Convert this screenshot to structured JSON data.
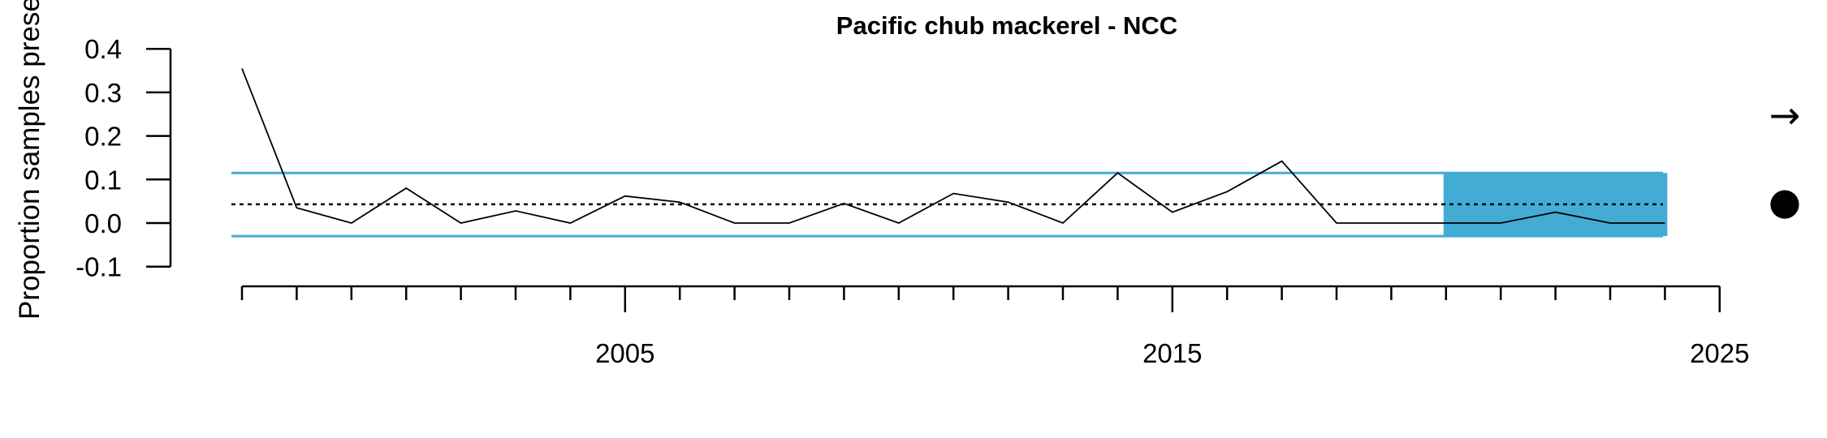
{
  "chart_data": {
    "type": "line",
    "title": "Pacific chub mackerel - NCC",
    "ylabel": "Proportion samples present",
    "xlabel": "",
    "x_range": [
      1997.5,
      2025
    ],
    "ylim": [
      -0.1,
      0.4
    ],
    "y_ticks": [
      {
        "value": 0.4,
        "label": "0.4"
      },
      {
        "value": 0.3,
        "label": "0.3"
      },
      {
        "value": 0.2,
        "label": "0.2"
      },
      {
        "value": 0.1,
        "label": "0.1"
      },
      {
        "value": 0.0,
        "label": "0.0"
      },
      {
        "value": -0.1,
        "label": "-0.1"
      }
    ],
    "x_major_ticks": [
      {
        "value": 2005,
        "label": "2005"
      },
      {
        "value": 2015,
        "label": "2015"
      },
      {
        "value": 2025,
        "label": "2025"
      }
    ],
    "x_minor_ticks": [
      1998,
      1999,
      2000,
      2001,
      2002,
      2003,
      2004,
      2006,
      2007,
      2008,
      2009,
      2010,
      2011,
      2012,
      2013,
      2014,
      2016,
      2017,
      2018,
      2019,
      2020,
      2021,
      2022,
      2023,
      2024
    ],
    "series": [
      {
        "name": "Proportion samples present",
        "x": [
          1998,
          1999,
          2000,
          2001,
          2002,
          2003,
          2004,
          2005,
          2006,
          2007,
          2008,
          2009,
          2010,
          2011,
          2012,
          2013,
          2014,
          2015,
          2016,
          2017,
          2018,
          2019,
          2020,
          2021,
          2022,
          2023,
          2024
        ],
        "values": [
          0.355,
          0.035,
          0.0,
          0.08,
          0.0,
          0.028,
          0.0,
          0.062,
          0.048,
          0.0,
          0.0,
          0.045,
          0.0,
          0.068,
          0.048,
          0.0,
          0.115,
          0.025,
          0.072,
          0.142,
          0.0,
          0.0,
          0.0,
          0.0,
          0.025,
          0.0,
          0.0
        ]
      }
    ],
    "mean": 0.043,
    "upper_sd": 0.115,
    "lower_sd": -0.03,
    "recent_window": [
      2020,
      2024
    ],
    "colors": {
      "band": "#42acd5",
      "line": "#000000"
    },
    "indicators": {
      "trend": "→",
      "mean": "●"
    }
  }
}
